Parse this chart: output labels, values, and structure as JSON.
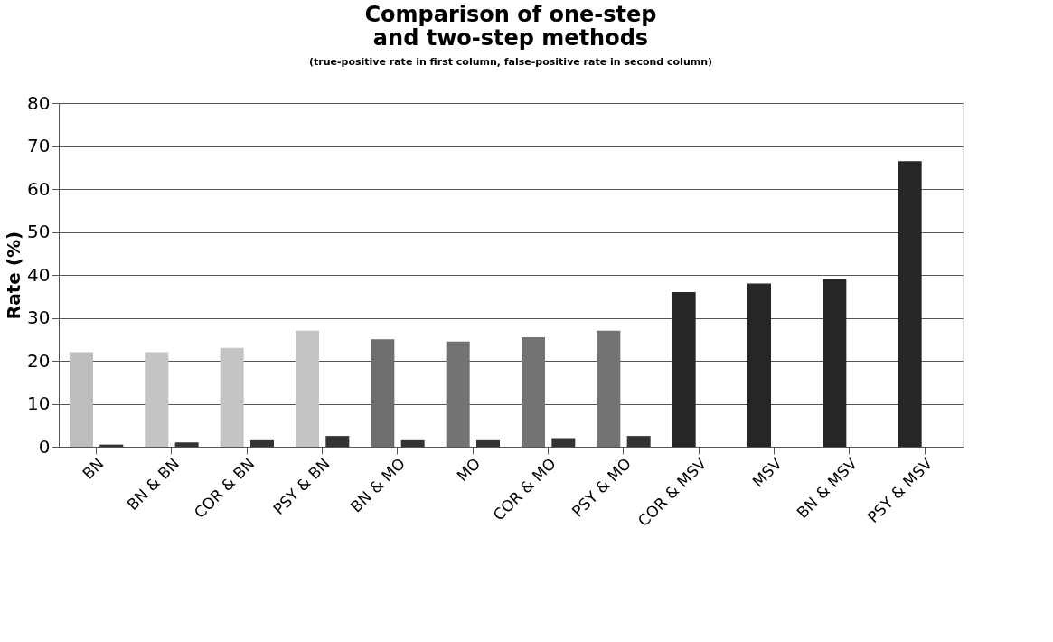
{
  "chart_data": {
    "type": "bar",
    "title": "Comparison of one-step and two-step methods",
    "subtitle": "(true-positive rate in first column, false-positive rate in second column)",
    "ylabel": "Rate (%)",
    "categories": [
      "BN",
      "BN & BN",
      "COR & BN",
      "PSY & BN",
      "BN & MO",
      "MO",
      "COR & MO",
      "PSY & MO",
      "COR & MSV",
      "MSV",
      "BN & MSV",
      "PSY & MSV"
    ],
    "series": [
      {
        "colors": [
          "#bdbdbd",
          "#c4c4c4",
          "#c4c4c4",
          "#c4c4c4",
          "#6e6e6e",
          "#737373",
          "#737373",
          "#737373",
          "#262626",
          "#262626",
          "#262626",
          "#262626"
        ],
        "values": [
          22,
          22,
          23,
          27,
          25,
          24.5,
          25.5,
          27,
          36,
          38,
          39,
          66.5
        ]
      },
      {
        "color": "#333333",
        "values": [
          0.5,
          1,
          1.5,
          2.5,
          1.5,
          1.5,
          2,
          2.5,
          null,
          null,
          null,
          null
        ]
      }
    ],
    "ylim": [
      0,
      80
    ],
    "yticks": [
      0,
      10,
      20,
      30,
      40,
      50,
      60,
      70,
      80
    ],
    "grid": "y"
  }
}
